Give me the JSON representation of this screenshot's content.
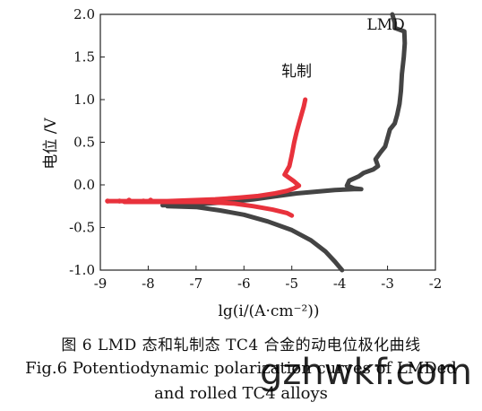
{
  "chart_data": {
    "type": "line",
    "xlabel": "lg(i/(A·cm⁻²))",
    "ylabel": "电位 /V",
    "xlim": [
      -9,
      -2
    ],
    "ylim": [
      -1.0,
      2.0
    ],
    "xticks": [
      "-9",
      "-8",
      "-7",
      "-6",
      "-5",
      "-4",
      "-3",
      "-2"
    ],
    "yticks": [
      "-1.0",
      "-0.5",
      "0.0",
      "0.5",
      "1.0",
      "1.5",
      "2.0"
    ],
    "grid": false,
    "series": [
      {
        "name": "LMD",
        "color": "#444444",
        "points": [
          [
            -7.7,
            -0.24
          ],
          [
            -7.3,
            -0.23
          ],
          [
            -6.8,
            -0.22
          ],
          [
            -6.3,
            -0.2
          ],
          [
            -5.8,
            -0.17
          ],
          [
            -5.3,
            -0.13
          ],
          [
            -4.9,
            -0.1
          ],
          [
            -4.5,
            -0.08
          ],
          [
            -4.1,
            -0.06
          ],
          [
            -3.7,
            -0.05
          ],
          [
            -3.55,
            -0.05
          ],
          [
            -3.7,
            -0.04
          ],
          [
            -3.85,
            -0.01
          ],
          [
            -3.8,
            0.05
          ],
          [
            -3.6,
            0.1
          ],
          [
            -3.5,
            0.14
          ],
          [
            -3.3,
            0.18
          ],
          [
            -3.2,
            0.22
          ],
          [
            -3.25,
            0.3
          ],
          [
            -3.15,
            0.38
          ],
          [
            -3.05,
            0.45
          ],
          [
            -3.0,
            0.55
          ],
          [
            -2.95,
            0.65
          ],
          [
            -2.85,
            0.72
          ],
          [
            -2.8,
            0.82
          ],
          [
            -2.75,
            0.95
          ],
          [
            -2.72,
            1.1
          ],
          [
            -2.7,
            1.3
          ],
          [
            -2.66,
            1.5
          ],
          [
            -2.64,
            1.66
          ],
          [
            -2.65,
            1.8
          ],
          [
            -2.85,
            1.84
          ],
          [
            -2.85,
            1.9
          ],
          [
            -2.9,
            2.0
          ]
        ],
        "cathodic": [
          [
            -7.6,
            -0.25
          ],
          [
            -7.0,
            -0.26
          ],
          [
            -6.5,
            -0.3
          ],
          [
            -6.0,
            -0.35
          ],
          [
            -5.5,
            -0.43
          ],
          [
            -5.0,
            -0.53
          ],
          [
            -4.6,
            -0.65
          ],
          [
            -4.3,
            -0.78
          ],
          [
            -4.1,
            -0.9
          ],
          [
            -3.95,
            -1.0
          ]
        ]
      },
      {
        "name": "轧制",
        "color": "#e8323c",
        "points": [
          [
            -8.85,
            -0.19
          ],
          [
            -8.5,
            -0.19
          ],
          [
            -8.1,
            -0.19
          ],
          [
            -7.6,
            -0.19
          ],
          [
            -7.1,
            -0.18
          ],
          [
            -6.6,
            -0.17
          ],
          [
            -6.1,
            -0.15
          ],
          [
            -5.7,
            -0.13
          ],
          [
            -5.35,
            -0.1
          ],
          [
            -5.1,
            -0.07
          ],
          [
            -4.95,
            -0.04
          ],
          [
            -4.85,
            -0.01
          ],
          [
            -4.95,
            0.04
          ],
          [
            -5.15,
            0.12
          ],
          [
            -5.05,
            0.22
          ],
          [
            -5.0,
            0.35
          ],
          [
            -4.95,
            0.5
          ],
          [
            -4.9,
            0.62
          ],
          [
            -4.85,
            0.72
          ],
          [
            -4.8,
            0.82
          ],
          [
            -4.75,
            0.92
          ],
          [
            -4.72,
            1.0
          ]
        ],
        "cathodic": [
          [
            -8.5,
            -0.2
          ],
          [
            -7.5,
            -0.2
          ],
          [
            -6.8,
            -0.2
          ],
          [
            -6.2,
            -0.22
          ],
          [
            -5.8,
            -0.25
          ],
          [
            -5.4,
            -0.29
          ],
          [
            -5.1,
            -0.33
          ],
          [
            -5.0,
            -0.36
          ]
        ],
        "scatter_points": [
          [
            -8.85,
            -0.19
          ],
          [
            -8.6,
            -0.19
          ],
          [
            -8.4,
            -0.18
          ],
          [
            -8.1,
            -0.19
          ],
          [
            -7.95,
            -0.18
          ]
        ]
      }
    ],
    "annotations": [
      {
        "text": "LMD",
        "near": [
          -2.85,
          1.8
        ]
      },
      {
        "text": "轧制",
        "near": [
          -4.75,
          1.15
        ]
      }
    ]
  },
  "captions": {
    "zh": "图 6  LMD 态和轧制态 TC4 合金的动电位极化曲线",
    "en_line1": "Fig.6  Potentiodynamic polarization curves of LMDed",
    "en_line2": "and rolled TC4 alloys"
  },
  "watermark": "gzhwkf.com"
}
